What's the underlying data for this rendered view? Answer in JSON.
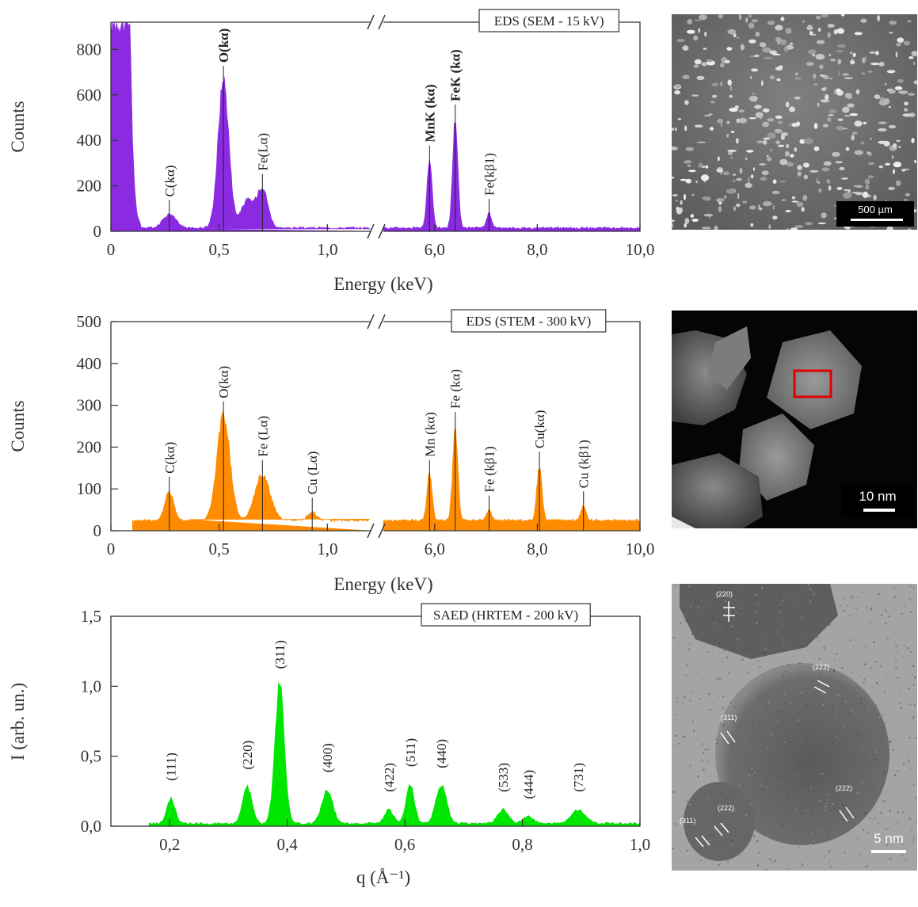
{
  "chart_data": [
    {
      "type": "area",
      "title": "EDS (SEM - 15 kV)",
      "xlabel": "Energy (keV)",
      "ylabel": "Counts",
      "color": "#8a2be2",
      "broken_x_axis": true,
      "xlim_low": [
        0,
        1.2
      ],
      "xlim_high": [
        5.0,
        10.0
      ],
      "ylim": [
        0,
        920
      ],
      "x_ticks": [
        {
          "v": 0,
          "label": "0"
        },
        {
          "v": 0.5,
          "label": "0,5"
        },
        {
          "v": 1.0,
          "label": "1,0"
        },
        {
          "v": 6.0,
          "label": "6,0"
        },
        {
          "v": 8.0,
          "label": "8,0"
        },
        {
          "v": 10.0,
          "label": "10,0"
        }
      ],
      "y_ticks": [
        {
          "v": 0,
          "label": "0"
        },
        {
          "v": 200,
          "label": "200"
        },
        {
          "v": 400,
          "label": "400"
        },
        {
          "v": 600,
          "label": "600"
        },
        {
          "v": 800,
          "label": "800"
        }
      ],
      "background": 15,
      "low_energy_tail": {
        "x_end": 0.09,
        "value": 920
      },
      "peaks": [
        {
          "x": 0.27,
          "value": 60,
          "width": 0.03,
          "label": "C(kα)",
          "bold": false
        },
        {
          "x": 0.52,
          "value": 650,
          "width": 0.025,
          "label": "O(kα)",
          "bold": true
        },
        {
          "x": 0.63,
          "value": 120,
          "width": 0.03,
          "label": "",
          "bold": false
        },
        {
          "x": 0.7,
          "value": 175,
          "width": 0.025,
          "label": "Fe(Lα)",
          "bold": false
        },
        {
          "x": 5.9,
          "value": 300,
          "width": 0.05,
          "label": "MnK (kα)",
          "bold": true
        },
        {
          "x": 6.4,
          "value": 480,
          "width": 0.05,
          "label": "FeK (kα)",
          "bold": true
        },
        {
          "x": 7.06,
          "value": 65,
          "width": 0.05,
          "label": "Fe(kβ1)",
          "bold": false
        }
      ]
    },
    {
      "type": "area",
      "title": "EDS (STEM - 300 kV)",
      "xlabel": "Energy (keV)",
      "ylabel": "Counts",
      "color": "#ff8c00",
      "broken_x_axis": true,
      "xlim_low": [
        0,
        1.2
      ],
      "xlim_high": [
        5.0,
        10.0
      ],
      "ylim": [
        0,
        500
      ],
      "x_ticks": [
        {
          "v": 0,
          "label": "0"
        },
        {
          "v": 0.5,
          "label": "0,5"
        },
        {
          "v": 1.0,
          "label": "1,0"
        },
        {
          "v": 6.0,
          "label": "6,0"
        },
        {
          "v": 8.0,
          "label": "8,0"
        },
        {
          "v": 10.0,
          "label": "10,0"
        }
      ],
      "y_ticks": [
        {
          "v": 0,
          "label": "0"
        },
        {
          "v": 100,
          "label": "100"
        },
        {
          "v": 200,
          "label": "200"
        },
        {
          "v": 300,
          "label": "300"
        },
        {
          "v": 400,
          "label": "400"
        },
        {
          "v": 500,
          "label": "500"
        }
      ],
      "background": 25,
      "x_start": 0.1,
      "peaks": [
        {
          "x": 0.27,
          "value": 70,
          "width": 0.02,
          "label": "C(kα)",
          "bold": false
        },
        {
          "x": 0.52,
          "value": 250,
          "width": 0.03,
          "label": "O(kα)",
          "bold": false
        },
        {
          "x": 0.7,
          "value": 110,
          "width": 0.035,
          "label": "Fe (Lα)",
          "bold": false
        },
        {
          "x": 0.93,
          "value": 20,
          "width": 0.02,
          "label": "Cu (Lα)",
          "bold": false
        },
        {
          "x": 5.9,
          "value": 110,
          "width": 0.05,
          "label": "Mn (kα)",
          "bold": false
        },
        {
          "x": 6.4,
          "value": 225,
          "width": 0.05,
          "label": "Fe (kα)",
          "bold": false
        },
        {
          "x": 7.06,
          "value": 25,
          "width": 0.05,
          "label": "Fe (kβ1)",
          "bold": false
        },
        {
          "x": 8.04,
          "value": 130,
          "width": 0.05,
          "label": "Cu(kα)",
          "bold": false
        },
        {
          "x": 8.9,
          "value": 35,
          "width": 0.05,
          "label": "Cu (kβ1)",
          "bold": false
        }
      ]
    },
    {
      "type": "area",
      "title": "SAED (HRTEM - 200 kV)",
      "xlabel": "q (Å⁻¹)",
      "ylabel": "I (arb. un.)",
      "color": "#00e600",
      "xlim": [
        0.1,
        1.0
      ],
      "ylim": [
        0,
        1.5
      ],
      "x_ticks": [
        {
          "v": 0.2,
          "label": "0,2"
        },
        {
          "v": 0.4,
          "label": "0,4"
        },
        {
          "v": 0.6,
          "label": "0,6"
        },
        {
          "v": 0.8,
          "label": "0,8"
        },
        {
          "v": 1.0,
          "label": "1,0"
        }
      ],
      "y_ticks": [
        {
          "v": 0,
          "label": "0,0"
        },
        {
          "v": 0.5,
          "label": "0,5"
        },
        {
          "v": 1.0,
          "label": "1,0"
        },
        {
          "v": 1.5,
          "label": "1,5"
        }
      ],
      "background": 0.02,
      "x_start": 0.165,
      "peaks": [
        {
          "x": 0.202,
          "value": 0.18,
          "width": 0.007,
          "label": "(111)"
        },
        {
          "x": 0.332,
          "value": 0.26,
          "width": 0.008,
          "label": "(220)"
        },
        {
          "x": 0.387,
          "value": 0.98,
          "width": 0.008,
          "label": "(311)"
        },
        {
          "x": 0.468,
          "value": 0.24,
          "width": 0.009,
          "label": "(400)"
        },
        {
          "x": 0.573,
          "value": 0.1,
          "width": 0.007,
          "label": "(422)"
        },
        {
          "x": 0.609,
          "value": 0.28,
          "width": 0.007,
          "label": "(511)"
        },
        {
          "x": 0.662,
          "value": 0.27,
          "width": 0.009,
          "label": "(440)"
        },
        {
          "x": 0.767,
          "value": 0.1,
          "width": 0.009,
          "label": "(533)"
        },
        {
          "x": 0.81,
          "value": 0.05,
          "width": 0.009,
          "label": "(444)"
        },
        {
          "x": 0.895,
          "value": 0.1,
          "width": 0.012,
          "label": "(731)"
        }
      ]
    }
  ],
  "micrographs": {
    "sem": {
      "scale": "500 µm"
    },
    "stem": {
      "scale": "10 nm"
    },
    "hrtem": {
      "scale": "5 nm",
      "planes": [
        "(220)",
        "(222)",
        "(311)",
        "(222)",
        "(311)",
        "(222)"
      ]
    }
  }
}
